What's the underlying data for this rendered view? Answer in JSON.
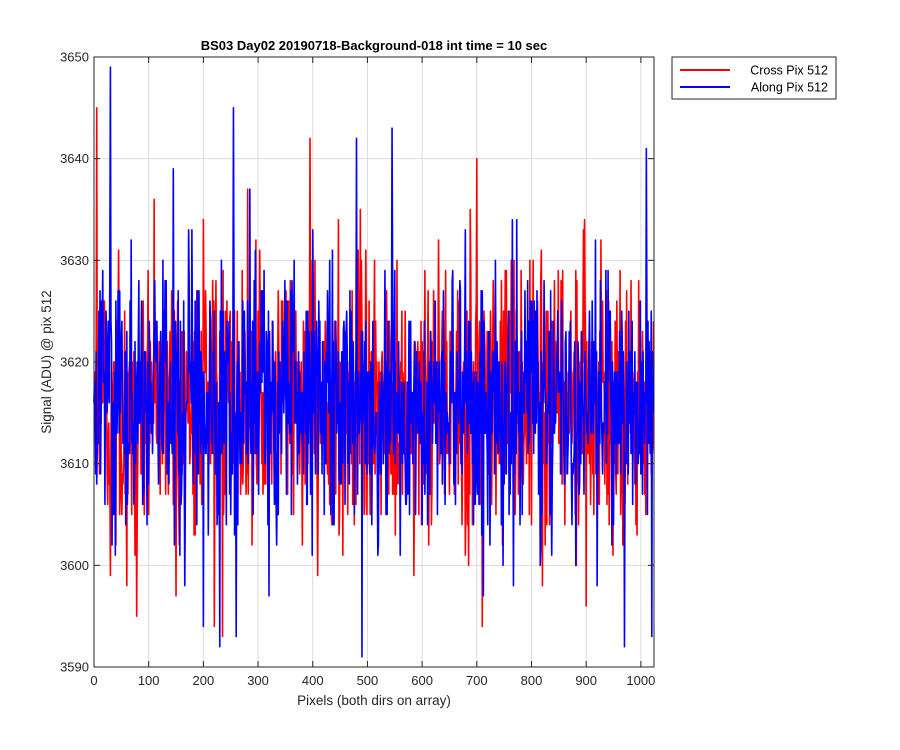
{
  "chart_data": {
    "type": "line",
    "title": "BS03 Day02 20190718-Background-018 int time = 10 sec",
    "xlabel": "Pixels (both dirs on array)",
    "ylabel": "Signal (ADU) @ pix 512",
    "xlim": [
      0,
      1024
    ],
    "ylim": [
      3590,
      3650
    ],
    "xticks": [
      0,
      100,
      200,
      300,
      400,
      500,
      600,
      700,
      800,
      900,
      1000
    ],
    "yticks": [
      3590,
      3600,
      3610,
      3620,
      3630,
      3640,
      3650
    ],
    "grid": true,
    "legend_position": "outside-top-right",
    "series": [
      {
        "name": "Cross Pix 512",
        "color": "#ff0000",
        "summary": {
          "n_points": 1024,
          "mean": 3616,
          "min": 3593,
          "max": 3645
        },
        "x": [
          0,
          5,
          30,
          60,
          78,
          110,
          150,
          200,
          220,
          235,
          260,
          281,
          365,
          395,
          455,
          520,
          553,
          585,
          700,
          710,
          730,
          820,
          882,
          900,
          1000,
          1024
        ],
        "y": [
          3616,
          3645,
          3599,
          3598,
          3595,
          3636,
          3597,
          3634,
          3594,
          3593,
          3603,
          3637,
          3605,
          3642,
          3601,
          3609,
          3607,
          3599,
          3640,
          3594,
          3628,
          3598,
          3600,
          3596,
          3610,
          3616
        ]
      },
      {
        "name": "Along Pix 512",
        "color": "#0000ff",
        "summary": {
          "n_points": 1024,
          "mean": 3616,
          "min": 3591,
          "max": 3649
        },
        "x": [
          0,
          30,
          100,
          145,
          200,
          230,
          255,
          260,
          285,
          320,
          400,
          480,
          490,
          545,
          600,
          712,
          765,
          920,
          970,
          1010,
          1020,
          1024
        ],
        "y": [
          3616,
          3649,
          3608,
          3639,
          3594,
          3592,
          3645,
          3593,
          3637,
          3597,
          3633,
          3642,
          3591,
          3643,
          3604,
          3597,
          3634,
          3598,
          3592,
          3641,
          3593,
          3616
        ]
      }
    ]
  }
}
